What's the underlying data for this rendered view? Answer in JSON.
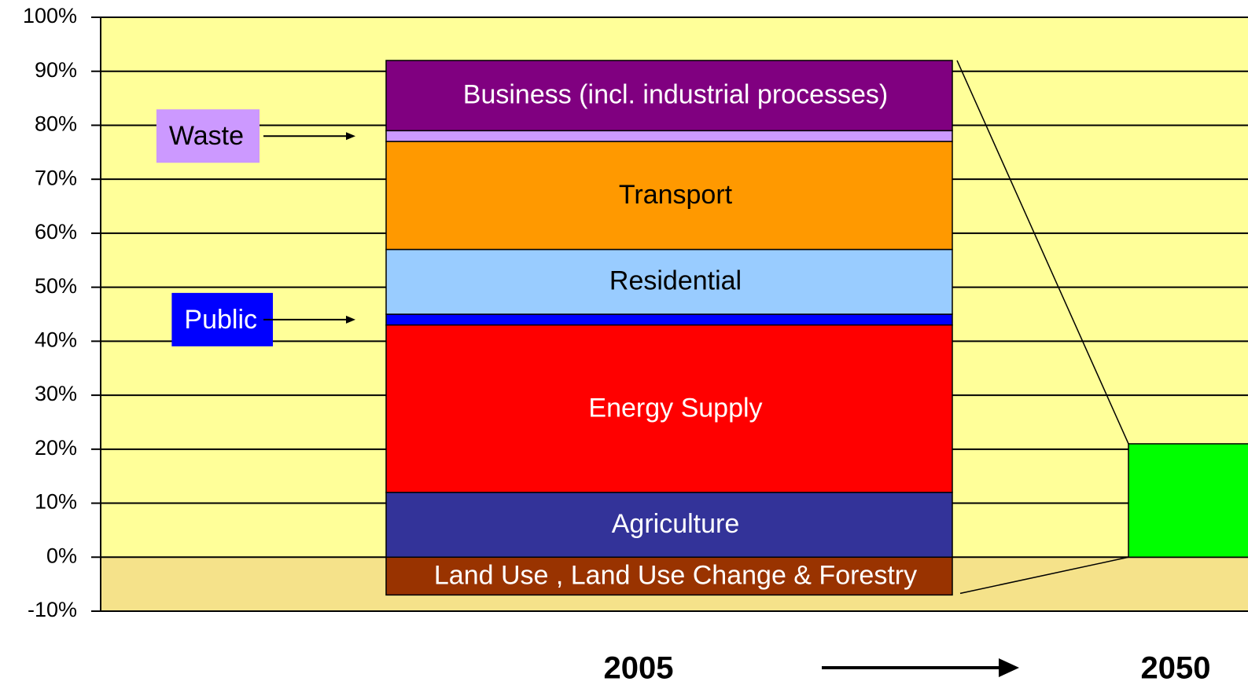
{
  "chart_data": {
    "type": "bar",
    "stacked": true,
    "categories": [
      "2005",
      "2050"
    ],
    "series": [
      {
        "name": "Land Use , Land Use Change & Forestry",
        "color": "#993300",
        "values": [
          -7,
          null
        ]
      },
      {
        "name": "Agriculture",
        "color": "#333399",
        "values": [
          12,
          null
        ]
      },
      {
        "name": "Energy Supply",
        "color": "#ff0000",
        "values": [
          31,
          null
        ]
      },
      {
        "name": "Public",
        "color": "#0000ff",
        "values": [
          2,
          null
        ]
      },
      {
        "name": "Residential",
        "color": "#99ccff",
        "values": [
          12,
          null
        ]
      },
      {
        "name": "Transport",
        "color": "#ff9900",
        "values": [
          20,
          null
        ]
      },
      {
        "name": "Waste",
        "color": "#cc99ff",
        "values": [
          2,
          null
        ]
      },
      {
        "name": "Business (incl. industrial processes)",
        "color": "#800080",
        "values": [
          13,
          null
        ]
      },
      {
        "color": "#00ff00",
        "values": [
          null,
          21
        ]
      }
    ],
    "ylim": [
      -10,
      100
    ],
    "yticks": [
      {
        "value": -10,
        "label": "-10%"
      },
      {
        "value": 0,
        "label": "0%"
      },
      {
        "value": 10,
        "label": "10%"
      },
      {
        "value": 20,
        "label": "20%"
      },
      {
        "value": 30,
        "label": "30%"
      },
      {
        "value": 40,
        "label": "40%"
      },
      {
        "value": 50,
        "label": "50%"
      },
      {
        "value": 60,
        "label": "60%"
      },
      {
        "value": 70,
        "label": "70%"
      },
      {
        "value": 80,
        "label": "80%"
      },
      {
        "value": 90,
        "label": "90%"
      },
      {
        "value": 100,
        "label": "100%"
      }
    ],
    "grid": true
  }
}
